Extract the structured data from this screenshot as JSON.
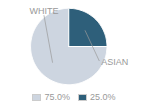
{
  "chart_data": {
    "type": "pie",
    "categories": [
      "WHITE",
      "ASIAN"
    ],
    "values": [
      75.0,
      25.0
    ],
    "value_labels": [
      "75.0%",
      "25.0%"
    ],
    "colors": [
      "#cdd5e0",
      "#2e5f7a"
    ],
    "legend": "bottom"
  }
}
